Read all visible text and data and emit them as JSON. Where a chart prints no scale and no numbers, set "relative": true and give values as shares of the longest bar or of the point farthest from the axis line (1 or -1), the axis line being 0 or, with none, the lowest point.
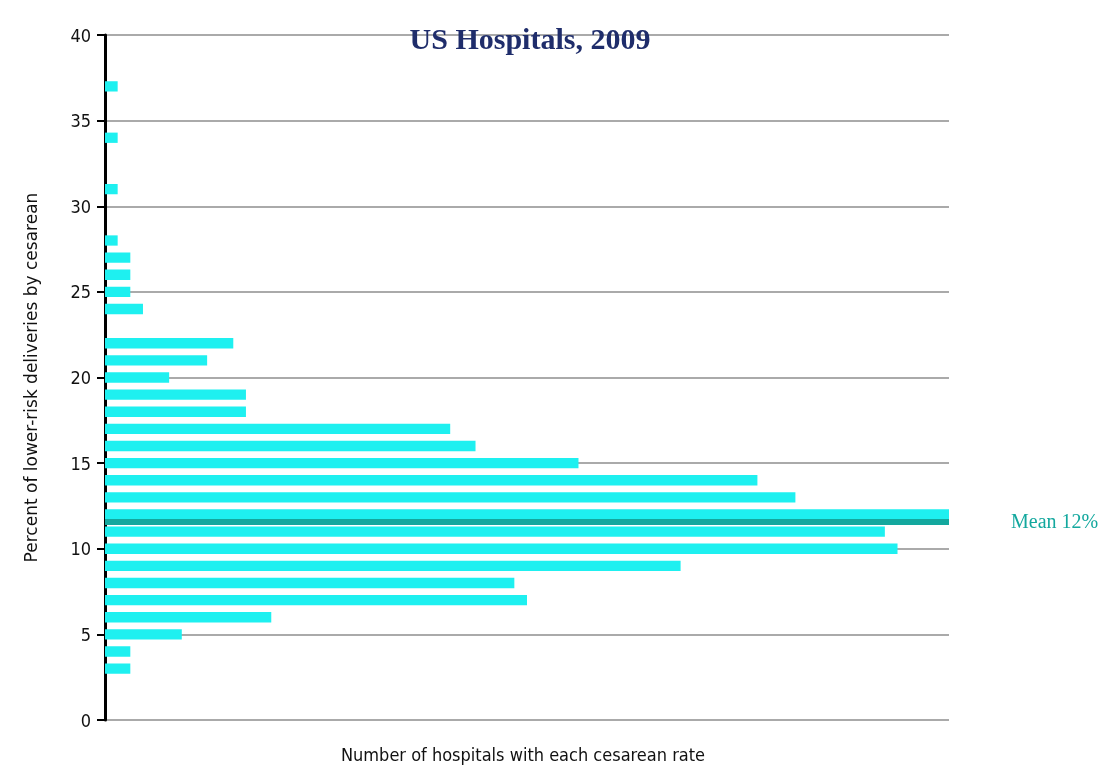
{
  "chart_data": {
    "type": "bar",
    "orientation": "horizontal",
    "relative": true,
    "title": "US Hospitals, 2009",
    "xlabel": "Number of hospitals with each cesarean rate",
    "ylabel": "Percent of lower-risk deliveries by cesarean",
    "x": [
      37,
      34,
      31,
      28,
      27,
      26,
      25,
      24,
      22,
      21,
      20,
      19,
      18,
      17,
      16,
      15,
      14,
      13,
      12,
      11,
      10,
      9,
      8,
      7,
      6,
      5,
      4,
      3
    ],
    "values": [
      0.015,
      0.015,
      0.015,
      0.015,
      0.03,
      0.03,
      0.03,
      0.045,
      0.152,
      0.121,
      0.076,
      0.167,
      0.167,
      0.409,
      0.439,
      0.561,
      0.773,
      0.818,
      1,
      0.924,
      0.939,
      0.682,
      0.485,
      0.5,
      0.197,
      0.091,
      0.03,
      0.03
    ],
    "color": "#1ef0f0",
    "ylim": [
      0,
      40
    ],
    "yticks": [
      0,
      5,
      10,
      15,
      20,
      25,
      30,
      35,
      40
    ],
    "grid": "y",
    "ref_lines": [
      {
        "axis": "y",
        "value": 11.6,
        "label": "Mean 12%",
        "color": "#13a89e"
      }
    ]
  }
}
